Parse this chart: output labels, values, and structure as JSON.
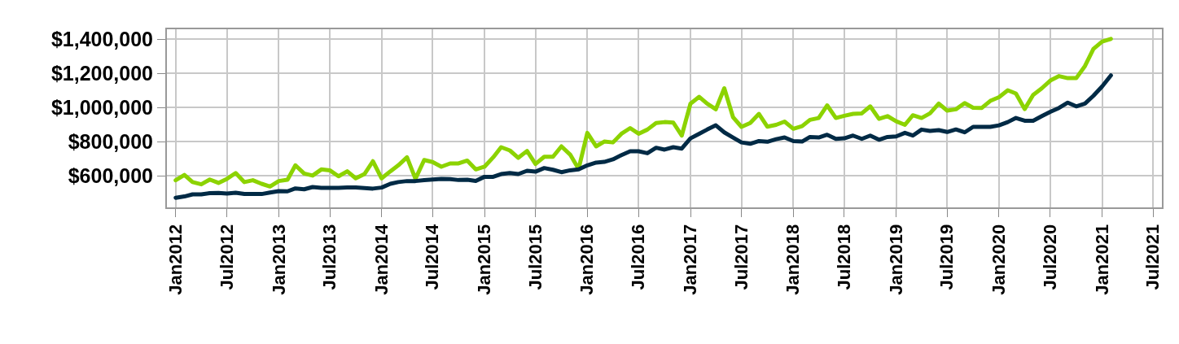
{
  "chart_data": {
    "type": "line",
    "x": [
      "2012-01",
      "2012-02",
      "2012-03",
      "2012-04",
      "2012-05",
      "2012-06",
      "2012-07",
      "2012-08",
      "2012-09",
      "2012-10",
      "2012-11",
      "2012-12",
      "2013-01",
      "2013-02",
      "2013-03",
      "2013-04",
      "2013-05",
      "2013-06",
      "2013-07",
      "2013-08",
      "2013-09",
      "2013-10",
      "2013-11",
      "2013-12",
      "2014-01",
      "2014-02",
      "2014-03",
      "2014-04",
      "2014-05",
      "2014-06",
      "2014-07",
      "2014-08",
      "2014-09",
      "2014-10",
      "2014-11",
      "2014-12",
      "2015-01",
      "2015-02",
      "2015-03",
      "2015-04",
      "2015-05",
      "2015-06",
      "2015-07",
      "2015-08",
      "2015-09",
      "2015-10",
      "2015-11",
      "2015-12",
      "2016-01",
      "2016-02",
      "2016-03",
      "2016-04",
      "2016-05",
      "2016-06",
      "2016-07",
      "2016-08",
      "2016-09",
      "2016-10",
      "2016-11",
      "2016-12",
      "2017-01",
      "2017-02",
      "2017-03",
      "2017-04",
      "2017-05",
      "2017-06",
      "2017-07",
      "2017-08",
      "2017-09",
      "2017-10",
      "2017-11",
      "2017-12",
      "2018-01",
      "2018-02",
      "2018-03",
      "2018-04",
      "2018-05",
      "2018-06",
      "2018-07",
      "2018-08",
      "2018-09",
      "2018-10",
      "2018-11",
      "2018-12",
      "2019-01",
      "2019-02",
      "2019-03",
      "2019-04",
      "2019-05",
      "2019-06",
      "2019-07",
      "2019-08",
      "2019-09",
      "2019-10",
      "2019-11",
      "2019-12",
      "2020-01",
      "2020-02",
      "2020-03",
      "2020-04",
      "2020-05",
      "2020-06",
      "2020-07",
      "2020-08",
      "2020-09",
      "2020-10",
      "2020-11",
      "2020-12",
      "2021-01",
      "2021-02"
    ],
    "series": [
      {
        "color": "#8cd300",
        "values": [
          575000,
          606000,
          564000,
          551000,
          579000,
          559000,
          583000,
          617000,
          564000,
          575000,
          554000,
          538000,
          570000,
          578000,
          662000,
          614000,
          602000,
          638000,
          633000,
          598000,
          627000,
          586000,
          611000,
          686000,
          586000,
          627000,
          662000,
          709000,
          583000,
          693000,
          681000,
          654000,
          673000,
          673000,
          690000,
          638000,
          654000,
          709000,
          768000,
          749000,
          706000,
          746000,
          670000,
          712000,
          712000,
          773000,
          725000,
          641000,
          852000,
          773000,
          801000,
          796000,
          847000,
          880000,
          847000,
          871000,
          910000,
          915000,
          912000,
          836000,
          1023000,
          1063000,
          1023000,
          990000,
          1113000,
          944000,
          887000,
          910000,
          963000,
          888000,
          899000,
          918000,
          876000,
          891000,
          928000,
          939000,
          1013000,
          939000,
          952000,
          963000,
          966000,
          1007000,
          934000,
          950000,
          920000,
          899000,
          955000,
          939000,
          966000,
          1023000,
          982000,
          990000,
          1026000,
          999000,
          998000,
          1039000,
          1061000,
          1101000,
          1082000,
          991000,
          1074000,
          1113000,
          1158000,
          1184000,
          1172000,
          1172000,
          1243000,
          1343000,
          1386000,
          1402000
        ]
      },
      {
        "color": "#002a45",
        "values": [
          472000,
          480000,
          492000,
          492000,
          499000,
          500000,
          497000,
          502000,
          495000,
          495000,
          494000,
          503000,
          511000,
          510000,
          527000,
          522000,
          535000,
          530000,
          530000,
          530000,
          532000,
          533000,
          529000,
          526000,
          532000,
          554000,
          564000,
          570000,
          570000,
          575000,
          579000,
          583000,
          581000,
          576000,
          578000,
          571000,
          595000,
          595000,
          611000,
          617000,
          611000,
          630000,
          625000,
          646000,
          636000,
          622000,
          633000,
          638000,
          662000,
          678000,
          682000,
          697000,
          722000,
          744000,
          744000,
          733000,
          765000,
          754000,
          768000,
          760000,
          820000,
          847000,
          871000,
          896000,
          855000,
          825000,
          796000,
          788000,
          804000,
          800000,
          815000,
          825000,
          804000,
          801000,
          828000,
          825000,
          841000,
          817000,
          820000,
          836000,
          817000,
          836000,
          812000,
          828000,
          831000,
          852000,
          836000,
          871000,
          863000,
          868000,
          857000,
          872000,
          855000,
          887000,
          887000,
          887000,
          896000,
          915000,
          939000,
          923000,
          923000,
          950000,
          975000,
          998000,
          1029000,
          1007000,
          1023000,
          1069000,
          1124000,
          1188000
        ]
      }
    ],
    "xlim": [
      "2011-12",
      "2021-08"
    ],
    "xticks": [
      {
        "value": "2012-01",
        "label": "Jan2012"
      },
      {
        "value": "2012-07",
        "label": "Jul2012"
      },
      {
        "value": "2013-01",
        "label": "Jan2013"
      },
      {
        "value": "2013-07",
        "label": "Jul2013"
      },
      {
        "value": "2014-01",
        "label": "Jan2014"
      },
      {
        "value": "2014-07",
        "label": "Jul2014"
      },
      {
        "value": "2015-01",
        "label": "Jan2015"
      },
      {
        "value": "2015-07",
        "label": "Jul2015"
      },
      {
        "value": "2016-01",
        "label": "Jan2016"
      },
      {
        "value": "2016-07",
        "label": "Jul2016"
      },
      {
        "value": "2017-01",
        "label": "Jan2017"
      },
      {
        "value": "2017-07",
        "label": "Jul2017"
      },
      {
        "value": "2018-01",
        "label": "Jan2018"
      },
      {
        "value": "2018-07",
        "label": "Jul2018"
      },
      {
        "value": "2019-01",
        "label": "Jan2019"
      },
      {
        "value": "2019-07",
        "label": "Jul2019"
      },
      {
        "value": "2020-01",
        "label": "Jan2020"
      },
      {
        "value": "2020-07",
        "label": "Jul2020"
      },
      {
        "value": "2021-01",
        "label": "Jan2021"
      },
      {
        "value": "2021-07",
        "label": "Jul2021"
      }
    ],
    "ylim": [
      416000,
      1458000
    ],
    "yticks": [
      {
        "value": 600000,
        "label": "$600,000"
      },
      {
        "value": 800000,
        "label": "$800,000"
      },
      {
        "value": 1000000,
        "label": "$1,000,000"
      },
      {
        "value": 1200000,
        "label": "$1,200,000"
      },
      {
        "value": 1400000,
        "label": "$1,400,000"
      }
    ],
    "grid": true,
    "legend": false,
    "marker": "none",
    "line_style": "solid"
  }
}
